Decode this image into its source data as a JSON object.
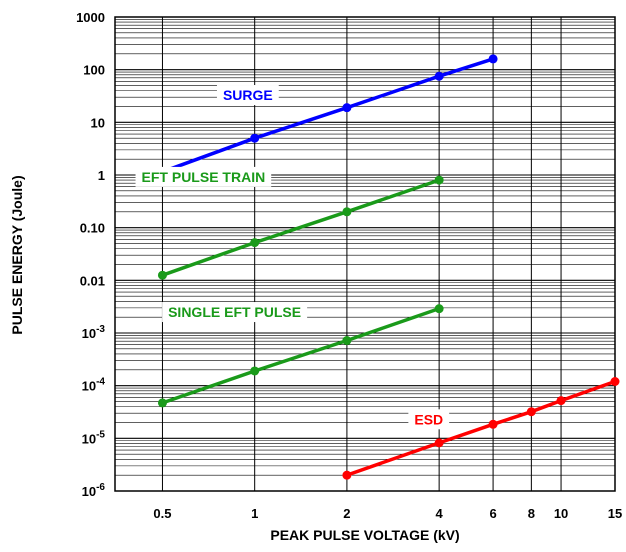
{
  "chart_data": {
    "type": "line",
    "title": "",
    "xlabel": "PEAK PULSE VOLTAGE (kV)",
    "ylabel": "PULSE ENERGY (Joule)",
    "x_scale": "log",
    "y_scale": "log",
    "xlim": [
      0.35,
      15
    ],
    "ylim": [
      1e-06,
      1000
    ],
    "grid": true,
    "x_ticks": [
      {
        "value": 0.5,
        "label": "0.5"
      },
      {
        "value": 1,
        "label": "1"
      },
      {
        "value": 2,
        "label": "2"
      },
      {
        "value": 4,
        "label": "4"
      },
      {
        "value": 6,
        "label": "6"
      },
      {
        "value": 8,
        "label": "8"
      },
      {
        "value": 10,
        "label": "10"
      },
      {
        "value": 15,
        "label": "15"
      }
    ],
    "y_ticks": [
      {
        "value": 1000,
        "label": "1000"
      },
      {
        "value": 100,
        "label": "100"
      },
      {
        "value": 10,
        "label": "10"
      },
      {
        "value": 1,
        "label": "1"
      },
      {
        "value": 0.1,
        "label": "0.10"
      },
      {
        "value": 0.01,
        "label": "0.01"
      },
      {
        "value": 0.001,
        "base": "10",
        "exp": "-3"
      },
      {
        "value": 0.0001,
        "base": "10",
        "exp": "-4"
      },
      {
        "value": 1e-05,
        "base": "10",
        "exp": "-5"
      },
      {
        "value": 1e-06,
        "base": "10",
        "exp": "-6"
      }
    ],
    "series": [
      {
        "name": "SURGE",
        "color": "#0000ff",
        "x": [
          0.5,
          1,
          2,
          4,
          6
        ],
        "y": [
          1.15,
          5,
          19,
          75,
          160
        ],
        "label_at": [
          0.95,
          33
        ]
      },
      {
        "name": "EFT PULSE TRAIN",
        "color": "#1a9a1a",
        "x": [
          0.5,
          1,
          2,
          4
        ],
        "y": [
          0.0125,
          0.052,
          0.2,
          0.8
        ],
        "label_at": [
          0.68,
          0.92
        ]
      },
      {
        "name": "SINGLE EFT PULSE",
        "color": "#1a9a1a",
        "x": [
          0.5,
          1,
          2,
          4
        ],
        "y": [
          4.7e-05,
          0.00019,
          0.00072,
          0.0029
        ],
        "label_at": [
          0.86,
          0.0025
        ]
      },
      {
        "name": "ESD",
        "color": "#ff0000",
        "x": [
          2,
          4,
          6,
          8,
          10,
          15
        ],
        "y": [
          2e-06,
          8.2e-06,
          1.85e-05,
          3.2e-05,
          5.2e-05,
          0.00012
        ],
        "label_at": [
          3.7,
          2.3e-05
        ]
      }
    ]
  }
}
